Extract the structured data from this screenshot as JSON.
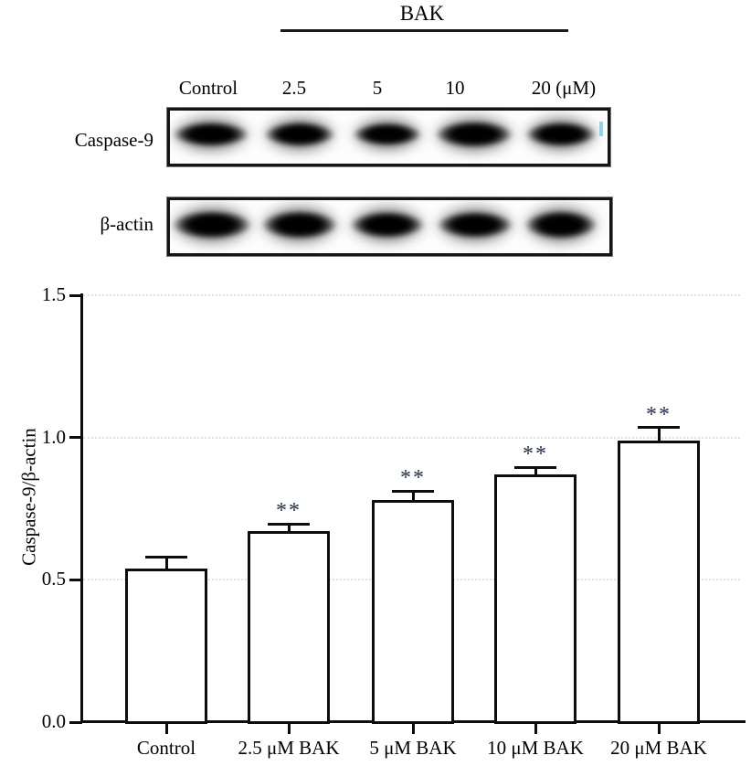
{
  "figure": {
    "treatment_label": "BAK",
    "lane_labels": [
      "Control",
      "2.5",
      "5",
      "10",
      "20 (μM)"
    ],
    "blots": [
      {
        "label": "Caspase-9",
        "lanes": 5
      },
      {
        "label": "β-actin",
        "lanes": 5
      }
    ]
  },
  "chart_data": {
    "type": "bar",
    "title": "",
    "categories": [
      "Control",
      "2.5 μM BAK",
      "5 μM BAK",
      "10 μM BAK",
      "20 μM BAK"
    ],
    "values": [
      0.54,
      0.67,
      0.78,
      0.87,
      0.99
    ],
    "errors": [
      0.04,
      0.026,
      0.032,
      0.026,
      0.045
    ],
    "significance": [
      "",
      "**",
      "**",
      "**",
      "**"
    ],
    "xlabel": "",
    "ylabel": "Caspase-9/β-actin",
    "ylim": [
      0.0,
      1.5
    ],
    "yticks": [
      0.0,
      0.5,
      1.0,
      1.5
    ],
    "ytick_labels": [
      "0.0",
      "0.5",
      "1.0",
      "1.5"
    ],
    "grid": "faint dotted horizontal lines at 0.5, 1.0, 1.5",
    "legend": "none",
    "bar_fill": "#ffffff",
    "bar_border": "#0d0d0d",
    "significance_color": "#25304a"
  }
}
